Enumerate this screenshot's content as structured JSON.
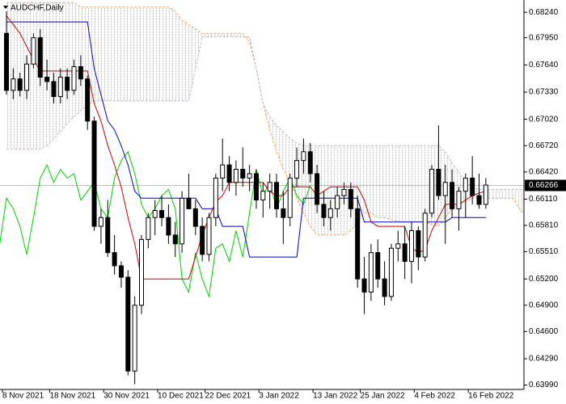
{
  "chart_data": {
    "type": "candlestick",
    "title": "AUDCHF,Daily",
    "categories": [
      "8 Nov 2021",
      null,
      null,
      null,
      null,
      null,
      null,
      "18 Nov 2021",
      null,
      null,
      null,
      null,
      null,
      null,
      null,
      "30 Nov 2021",
      null,
      null,
      null,
      null,
      null,
      null,
      null,
      "10 Dec 2021",
      null,
      null,
      null,
      null,
      null,
      null,
      "22 Dec 2021",
      null,
      null,
      null,
      null,
      null,
      null,
      null,
      "3 Jan 2022",
      null,
      null,
      null,
      null,
      null,
      null,
      null,
      "13 Jan 2022",
      null,
      null,
      null,
      null,
      null,
      null,
      "25 Jan 2022",
      null,
      null,
      null,
      null,
      null,
      null,
      null,
      "4 Feb 2022",
      null,
      null,
      null,
      null,
      null,
      null,
      null,
      "16 Feb 2022",
      null,
      null
    ],
    "open": [
      0.68,
      0.6735,
      0.6748,
      0.6735,
      0.6765,
      0.6795,
      0.675,
      0.6745,
      0.6728,
      0.675,
      0.6735,
      0.6762,
      0.6748,
      0.67,
      0.658,
      0.659,
      0.655,
      0.6535,
      0.6522,
      0.6415,
      0.649,
      0.6565,
      0.659,
      0.6598,
      0.659,
      0.657,
      0.656,
      0.6612,
      0.66,
      0.658,
      0.6548,
      0.659,
      0.6635,
      0.665,
      0.663,
      0.6645,
      0.6635,
      0.664,
      0.661,
      0.662,
      0.663,
      0.66,
      0.659,
      0.6635,
      0.6655,
      0.6665,
      0.664,
      0.6605,
      0.659,
      0.66,
      0.6615,
      0.6622,
      0.66,
      0.652,
      0.6505,
      0.655,
      0.652,
      0.65,
      0.6555,
      0.656,
      0.654,
      0.6575,
      0.6545,
      0.6595,
      0.6645,
      0.6615,
      0.663,
      0.66,
      0.662,
      0.6635,
      0.6615,
      0.6605
    ],
    "high": [
      0.6825,
      0.676,
      0.6755,
      0.6775,
      0.68,
      0.6805,
      0.677,
      0.6755,
      0.676,
      0.676,
      0.677,
      0.6775,
      0.6752,
      0.6705,
      0.66,
      0.661,
      0.657,
      0.654,
      0.653,
      0.65,
      0.657,
      0.6595,
      0.661,
      0.6615,
      0.6605,
      0.6585,
      0.662,
      0.664,
      0.661,
      0.659,
      0.6595,
      0.664,
      0.668,
      0.666,
      0.6655,
      0.667,
      0.665,
      0.6645,
      0.663,
      0.664,
      0.664,
      0.662,
      0.664,
      0.667,
      0.668,
      0.6675,
      0.665,
      0.662,
      0.661,
      0.6625,
      0.663,
      0.663,
      0.6615,
      0.6545,
      0.656,
      0.6565,
      0.654,
      0.656,
      0.6575,
      0.658,
      0.6585,
      0.658,
      0.66,
      0.665,
      0.6695,
      0.665,
      0.6645,
      0.6625,
      0.664,
      0.666,
      0.664,
      0.6635
    ],
    "low": [
      0.673,
      0.6725,
      0.6728,
      0.6725,
      0.676,
      0.674,
      0.6735,
      0.672,
      0.672,
      0.6725,
      0.673,
      0.674,
      0.669,
      0.6575,
      0.656,
      0.6545,
      0.6525,
      0.651,
      0.641,
      0.64,
      0.648,
      0.6555,
      0.657,
      0.658,
      0.656,
      0.6545,
      0.655,
      0.66,
      0.657,
      0.654,
      0.654,
      0.658,
      0.662,
      0.662,
      0.6615,
      0.6625,
      0.662,
      0.66,
      0.659,
      0.66,
      0.659,
      0.656,
      0.658,
      0.6625,
      0.664,
      0.663,
      0.6595,
      0.658,
      0.6575,
      0.659,
      0.6605,
      0.659,
      0.651,
      0.648,
      0.6495,
      0.651,
      0.649,
      0.6495,
      0.654,
      0.652,
      0.6515,
      0.653,
      0.654,
      0.659,
      0.661,
      0.656,
      0.659,
      0.6575,
      0.659,
      0.6605,
      0.66,
      0.66
    ],
    "close": [
      0.6735,
      0.6748,
      0.6735,
      0.6765,
      0.6795,
      0.675,
      0.6745,
      0.6728,
      0.675,
      0.6735,
      0.6762,
      0.6748,
      0.67,
      0.658,
      0.659,
      0.655,
      0.6535,
      0.6522,
      0.6415,
      0.649,
      0.6565,
      0.659,
      0.6598,
      0.659,
      0.657,
      0.656,
      0.6612,
      0.66,
      0.658,
      0.6548,
      0.659,
      0.6635,
      0.665,
      0.663,
      0.6645,
      0.6635,
      0.664,
      0.661,
      0.662,
      0.663,
      0.66,
      0.659,
      0.6635,
      0.6655,
      0.6665,
      0.664,
      0.6605,
      0.659,
      0.66,
      0.6615,
      0.6622,
      0.66,
      0.652,
      0.6505,
      0.655,
      0.652,
      0.65,
      0.6555,
      0.656,
      0.654,
      0.6575,
      0.6545,
      0.6595,
      0.6645,
      0.6615,
      0.663,
      0.66,
      0.662,
      0.6635,
      0.6615,
      0.6605,
      0.6627
    ],
    "up_color": "#ffffff",
    "down_color": "#000000",
    "indicators": {
      "tenkan": {
        "color": "#d00000",
        "values": [
          0.682,
          0.681,
          0.68,
          0.6785,
          0.677,
          0.6757,
          0.6757,
          0.6757,
          0.6757,
          0.6757,
          0.6757,
          0.6757,
          0.6757,
          0.672,
          0.67,
          0.6672,
          0.665,
          0.6625,
          0.659,
          0.656,
          0.652,
          0.652,
          0.652,
          0.652,
          0.652,
          0.652,
          0.652,
          0.652,
          0.6545,
          0.657,
          0.659,
          0.6608,
          0.6615,
          0.663,
          0.663,
          0.663,
          0.663,
          0.663,
          0.663,
          0.662,
          0.6615,
          0.6615,
          0.6625,
          0.6625,
          0.6625,
          0.6625,
          0.6615,
          0.662,
          0.6625,
          0.6625,
          0.6625,
          0.6625,
          0.6625,
          0.661,
          0.6585,
          0.658,
          0.658,
          0.658,
          0.658,
          0.658,
          0.6555,
          0.655,
          0.6553,
          0.6575,
          0.659,
          0.6605,
          0.6605,
          0.6605,
          0.661,
          0.6615,
          0.6618,
          0.662
        ]
      },
      "kijun": {
        "color": "#0000c8",
        "values": [
          0.6813,
          0.6813,
          0.6813,
          0.6813,
          0.6813,
          0.6813,
          0.6813,
          0.6813,
          0.6813,
          0.6813,
          0.6813,
          0.6813,
          0.6813,
          0.676,
          0.673,
          0.67,
          0.669,
          0.6672,
          0.665,
          0.662,
          0.6612,
          0.6612,
          0.6612,
          0.6612,
          0.6612,
          0.6612,
          0.6612,
          0.6612,
          0.6612,
          0.66,
          0.66,
          0.66,
          0.658,
          0.658,
          0.658,
          0.658,
          0.6545,
          0.6545,
          0.6545,
          0.6545,
          0.6545,
          0.6545,
          0.6545,
          0.6545,
          0.6612,
          0.6612,
          0.6612,
          0.6612,
          0.6612,
          0.6612,
          0.6612,
          0.6612,
          0.6612,
          0.6585,
          0.6585,
          0.6585,
          0.6585,
          0.6585,
          0.6585,
          0.6585,
          0.6585,
          0.6585,
          0.6585,
          0.6585,
          0.6585,
          0.6585,
          0.659,
          0.659,
          0.659,
          0.659,
          0.659,
          0.659
        ]
      },
      "span_a": {
        "color": "#f4a460",
        "values": [
          0.6835,
          0.6835,
          0.6835,
          0.6835,
          0.6835,
          0.6835,
          0.6835,
          0.6835,
          0.6835,
          0.6835,
          0.6835,
          0.683,
          0.683,
          0.683,
          0.683,
          0.683,
          0.683,
          0.683,
          0.683,
          0.683,
          0.683,
          0.683,
          0.683,
          0.683,
          0.683,
          0.6825,
          0.6815,
          0.681,
          0.6805,
          0.68,
          0.68,
          0.68,
          0.68,
          0.68,
          0.68,
          0.68,
          0.679,
          0.676,
          0.672,
          0.669,
          0.6665,
          0.6645,
          0.663,
          0.6612,
          0.6595,
          0.658,
          0.657,
          0.657,
          0.657,
          0.657,
          0.657,
          0.6575,
          0.6585,
          0.6595,
          0.6595,
          0.659,
          0.659,
          0.6588,
          0.6585,
          0.6585,
          0.6585,
          0.6585,
          0.6585,
          0.6582,
          0.658,
          0.659,
          0.66,
          0.6605,
          0.6608,
          0.6612,
          0.6612,
          0.6612,
          0.6612,
          0.6612,
          0.6612,
          0.6612,
          0.66,
          0.659
        ]
      },
      "span_b": {
        "color": "#c8b4d2",
        "values": [
          0.6668,
          0.6668,
          0.6668,
          0.6668,
          0.6668,
          0.6668,
          0.6672,
          0.668,
          0.6688,
          0.6697,
          0.6705,
          0.6712,
          0.6718,
          0.6723,
          0.6723,
          0.6723,
          0.6723,
          0.6723,
          0.6723,
          0.6723,
          0.6723,
          0.6723,
          0.6723,
          0.6723,
          0.6723,
          0.6723,
          0.6723,
          0.6723,
          0.676,
          0.6796,
          0.6796,
          0.6796,
          0.6796,
          0.6796,
          0.6796,
          0.6796,
          0.6796,
          0.676,
          0.672,
          0.6705,
          0.6695,
          0.6688,
          0.668,
          0.6675,
          0.6672,
          0.6672,
          0.6672,
          0.6672,
          0.6672,
          0.6672,
          0.6672,
          0.6672,
          0.6672,
          0.6672,
          0.6672,
          0.6672,
          0.6672,
          0.6672,
          0.6672,
          0.6672,
          0.6672,
          0.6672,
          0.6672,
          0.6672,
          0.6672,
          0.6665,
          0.6652,
          0.6642,
          0.663,
          0.6625,
          0.6622,
          0.6622,
          0.6622,
          0.6622,
          0.6622,
          0.6622,
          0.6622,
          0.6622
        ]
      }
    },
    "chikou_color": "#00d000",
    "current_price": 0.66266,
    "current_price_color": "#c0c0c0",
    "ylim": [
      0.6394,
      0.6838
    ],
    "yticks": [
      {
        "value": 0.6824,
        "label": "0.68240"
      },
      {
        "value": 0.6795,
        "label": "0.67950"
      },
      {
        "value": 0.6764,
        "label": "0.67640"
      },
      {
        "value": 0.6733,
        "label": "0.67330"
      },
      {
        "value": 0.6702,
        "label": "0.67020"
      },
      {
        "value": 0.6672,
        "label": "0.66720"
      },
      {
        "value": 0.6642,
        "label": "0.66420"
      },
      {
        "value": 0.6611,
        "label": "0.66110"
      },
      {
        "value": 0.6581,
        "label": "0.65810"
      },
      {
        "value": 0.6551,
        "label": "0.65510"
      },
      {
        "value": 0.652,
        "label": "0.65200"
      },
      {
        "value": 0.649,
        "label": "0.64900"
      },
      {
        "value": 0.646,
        "label": "0.64600"
      },
      {
        "value": 0.6429,
        "label": "0.64290"
      },
      {
        "value": 0.6399,
        "label": "0.63990"
      }
    ]
  }
}
